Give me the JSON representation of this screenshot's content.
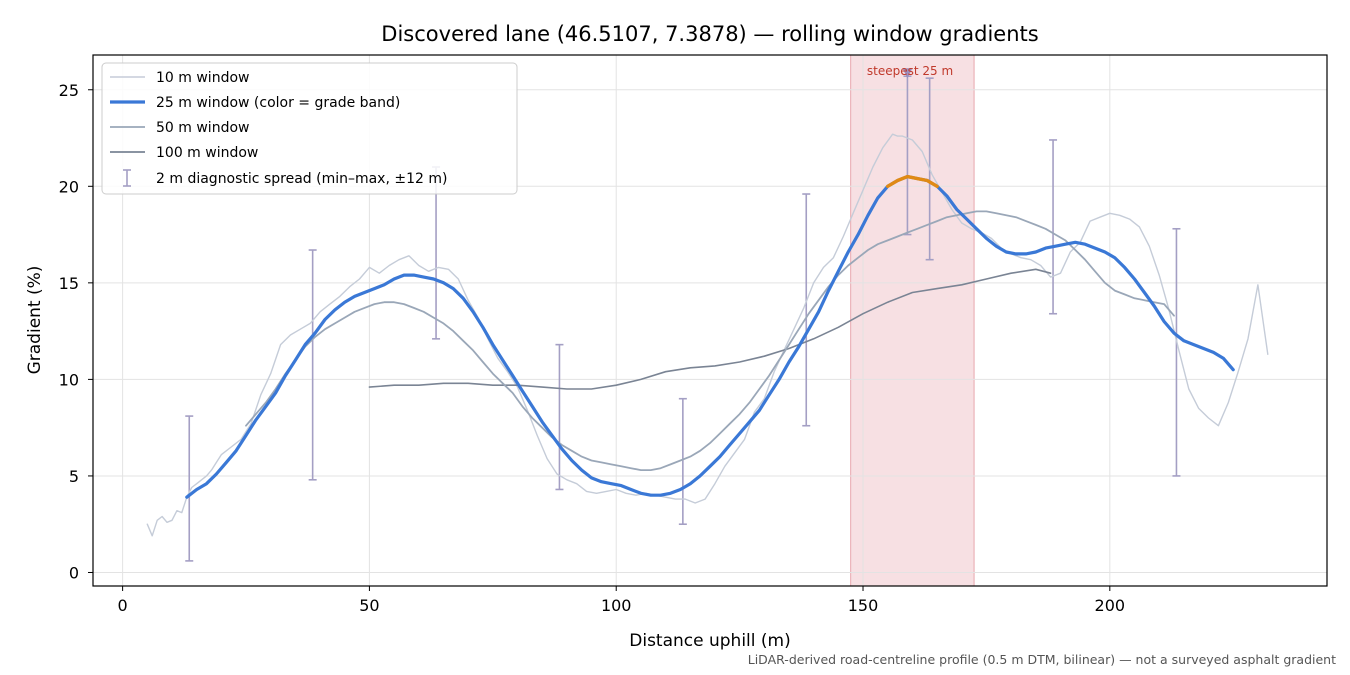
{
  "chart_data": {
    "type": "line",
    "title": "Discovered lane (46.5107, 7.3878) — rolling window gradients",
    "xlabel": "Distance uphill (m)",
    "ylabel": "Gradient (%)",
    "xlim": [
      -6,
      244
    ],
    "ylim": [
      -0.7,
      26.8
    ],
    "x_ticks": [
      0,
      50,
      100,
      150,
      200
    ],
    "y_ticks": [
      0,
      5,
      10,
      15,
      20,
      25
    ],
    "grid": true,
    "legend_position": "top-left",
    "footnote": "LiDAR-derived road-centreline profile (0.5 m DTM, bilinear) — not a surveyed asphalt gradient",
    "highlight": {
      "label": "steepest 25 m",
      "x_start": 147.5,
      "x_end": 172.5,
      "marker_x": 159,
      "marker_y": 25.8
    },
    "colors": {
      "w10": "#c5ccd8",
      "w25": "#3a78d6",
      "w25_steep": "#e08a14",
      "w50": "#9aa7b8",
      "w100": "#7a8494",
      "errorbar": "#a49fc4",
      "band": "#f4d6d9",
      "band_edge": "#e8a7ae",
      "marker": "#9b8fc0"
    },
    "series": [
      {
        "name": "10 m window",
        "key": "w10",
        "x": [
          5,
          6,
          7,
          8,
          9,
          10,
          11,
          12,
          13,
          14,
          15,
          16,
          17,
          18,
          19,
          20,
          22,
          24,
          26,
          28,
          30,
          32,
          34,
          36,
          38,
          40,
          42,
          44,
          46,
          48,
          50,
          52,
          54,
          56,
          58,
          60,
          62,
          64,
          66,
          68,
          70,
          72,
          74,
          76,
          78,
          80,
          82,
          84,
          86,
          88,
          90,
          92,
          94,
          96,
          98,
          100,
          102,
          104,
          106,
          108,
          110,
          112,
          114,
          116,
          118,
          120,
          122,
          124,
          126,
          128,
          130,
          132,
          134,
          136,
          138,
          140,
          142,
          144,
          146,
          148,
          150,
          152,
          154,
          156,
          157,
          158,
          160,
          162,
          164,
          166,
          168,
          170,
          172,
          174,
          176,
          178,
          180,
          182,
          184,
          186,
          188,
          190,
          192,
          194,
          196,
          198,
          200,
          202,
          204,
          206,
          208,
          210,
          212,
          214,
          216,
          218,
          220,
          222,
          224,
          226,
          228,
          230,
          232
        ],
        "values": [
          2.5,
          1.9,
          2.7,
          2.9,
          2.6,
          2.7,
          3.2,
          3.1,
          3.9,
          4.4,
          4.6,
          4.8,
          5.0,
          5.3,
          5.7,
          6.1,
          6.5,
          6.9,
          7.7,
          9.2,
          10.3,
          11.8,
          12.3,
          12.6,
          12.9,
          13.5,
          13.9,
          14.3,
          14.8,
          15.2,
          15.8,
          15.5,
          15.9,
          16.2,
          16.4,
          15.9,
          15.6,
          15.8,
          15.7,
          15.2,
          14.1,
          13.2,
          12.1,
          11.1,
          10.4,
          9.6,
          8.4,
          7.1,
          5.9,
          5.1,
          4.8,
          4.6,
          4.2,
          4.1,
          4.2,
          4.3,
          4.1,
          4.0,
          4.1,
          4.0,
          3.9,
          3.8,
          3.8,
          3.6,
          3.8,
          4.6,
          5.5,
          6.2,
          6.9,
          8.3,
          9.0,
          10.4,
          11.5,
          12.6,
          13.7,
          15.0,
          15.8,
          16.3,
          17.4,
          18.6,
          19.8,
          21.0,
          22.0,
          22.7,
          22.6,
          22.6,
          22.4,
          21.8,
          20.6,
          19.7,
          18.8,
          18.1,
          17.8,
          17.6,
          17.3,
          16.8,
          16.5,
          16.3,
          16.2,
          15.9,
          15.3,
          15.5,
          16.6,
          17.1,
          18.2,
          18.4,
          18.6,
          18.5,
          18.3,
          17.9,
          16.9,
          15.4,
          13.6,
          11.5,
          9.5,
          8.5,
          8.0,
          7.6,
          8.8,
          10.4,
          12.1,
          14.9,
          11.3
        ]
      },
      {
        "name": "25 m window (color = grade band)",
        "key": "w25",
        "x": [
          13,
          15,
          17,
          19,
          21,
          23,
          25,
          27,
          29,
          31,
          33,
          35,
          37,
          39,
          41,
          43,
          45,
          47,
          49,
          51,
          53,
          55,
          57,
          59,
          61,
          63,
          65,
          67,
          69,
          71,
          73,
          75,
          77,
          79,
          81,
          83,
          85,
          87,
          89,
          91,
          93,
          95,
          97,
          99,
          101,
          103,
          105,
          107,
          109,
          111,
          113,
          115,
          117,
          119,
          121,
          123,
          125,
          127,
          129,
          131,
          133,
          135,
          137,
          139,
          141,
          143,
          145,
          147,
          149,
          151,
          153,
          155,
          157,
          159,
          161,
          163,
          165,
          167,
          169,
          171,
          173,
          175,
          177,
          179,
          181,
          183,
          185,
          187,
          189,
          191,
          193,
          195,
          197,
          199,
          201,
          203,
          205,
          207,
          209,
          211,
          213,
          215,
          217,
          219,
          221,
          223,
          225
        ],
        "values": [
          3.9,
          4.3,
          4.6,
          5.1,
          5.7,
          6.3,
          7.1,
          7.9,
          8.6,
          9.3,
          10.2,
          11.0,
          11.8,
          12.4,
          13.1,
          13.6,
          14.0,
          14.3,
          14.5,
          14.7,
          14.9,
          15.2,
          15.4,
          15.4,
          15.3,
          15.2,
          15.0,
          14.7,
          14.2,
          13.5,
          12.7,
          11.8,
          11.0,
          10.2,
          9.4,
          8.6,
          7.8,
          7.1,
          6.4,
          5.8,
          5.3,
          4.9,
          4.7,
          4.6,
          4.5,
          4.3,
          4.1,
          4.0,
          4.0,
          4.1,
          4.3,
          4.6,
          5.0,
          5.5,
          6.0,
          6.6,
          7.2,
          7.8,
          8.4,
          9.2,
          10.0,
          10.9,
          11.7,
          12.6,
          13.5,
          14.6,
          15.6,
          16.6,
          17.5,
          18.5,
          19.4,
          20.0,
          20.3,
          20.5,
          20.4,
          20.3,
          20.0,
          19.5,
          18.8,
          18.3,
          17.8,
          17.3,
          16.9,
          16.6,
          16.5,
          16.5,
          16.6,
          16.8,
          16.9,
          17.0,
          17.1,
          17.0,
          16.8,
          16.6,
          16.3,
          15.8,
          15.2,
          14.5,
          13.8,
          13.0,
          12.4,
          12.0,
          11.8,
          11.6,
          11.4,
          11.1,
          10.5
        ]
      },
      {
        "name": "50 m window",
        "key": "w50",
        "x": [
          25,
          27,
          29,
          31,
          33,
          35,
          37,
          39,
          41,
          43,
          45,
          47,
          49,
          51,
          53,
          55,
          57,
          59,
          61,
          63,
          65,
          67,
          69,
          71,
          73,
          75,
          77,
          79,
          81,
          83,
          85,
          87,
          89,
          91,
          93,
          95,
          97,
          99,
          101,
          103,
          105,
          107,
          109,
          111,
          113,
          115,
          117,
          119,
          121,
          123,
          125,
          127,
          129,
          131,
          133,
          135,
          137,
          139,
          141,
          143,
          145,
          147,
          149,
          151,
          153,
          155,
          157,
          159,
          161,
          163,
          165,
          167,
          169,
          171,
          173,
          175,
          177,
          179,
          181,
          183,
          185,
          187,
          189,
          191,
          193,
          195,
          197,
          199,
          201,
          203,
          205,
          207,
          209,
          211,
          213
        ],
        "values": [
          7.6,
          8.2,
          8.8,
          9.5,
          10.3,
          11.0,
          11.7,
          12.2,
          12.6,
          12.9,
          13.2,
          13.5,
          13.7,
          13.9,
          14.0,
          14.0,
          13.9,
          13.7,
          13.5,
          13.2,
          12.9,
          12.5,
          12.0,
          11.5,
          10.9,
          10.3,
          9.8,
          9.3,
          8.6,
          8.0,
          7.5,
          7.0,
          6.6,
          6.3,
          6.0,
          5.8,
          5.7,
          5.6,
          5.5,
          5.4,
          5.3,
          5.3,
          5.4,
          5.6,
          5.8,
          6.0,
          6.3,
          6.7,
          7.2,
          7.7,
          8.2,
          8.8,
          9.5,
          10.2,
          11.0,
          11.8,
          12.6,
          13.4,
          14.1,
          14.8,
          15.4,
          15.9,
          16.3,
          16.7,
          17.0,
          17.2,
          17.4,
          17.6,
          17.8,
          18.0,
          18.2,
          18.4,
          18.5,
          18.6,
          18.7,
          18.7,
          18.6,
          18.5,
          18.4,
          18.2,
          18.0,
          17.8,
          17.5,
          17.2,
          16.7,
          16.2,
          15.6,
          15.0,
          14.6,
          14.4,
          14.2,
          14.1,
          14.0,
          13.9,
          13.3
        ]
      },
      {
        "name": "100 m window",
        "key": "w100",
        "x": [
          50,
          55,
          60,
          65,
          70,
          75,
          80,
          85,
          90,
          95,
          100,
          105,
          110,
          115,
          120,
          125,
          130,
          135,
          140,
          145,
          150,
          155,
          160,
          165,
          170,
          175,
          180,
          185,
          188
        ],
        "values": [
          9.6,
          9.7,
          9.7,
          9.8,
          9.8,
          9.7,
          9.7,
          9.6,
          9.5,
          9.5,
          9.7,
          10.0,
          10.4,
          10.6,
          10.7,
          10.9,
          11.2,
          11.6,
          12.1,
          12.7,
          13.4,
          14.0,
          14.5,
          14.7,
          14.9,
          15.2,
          15.5,
          15.7,
          15.5
        ]
      }
    ],
    "errorbars": {
      "name": "2 m diagnostic spread (min–max, ±12 m)",
      "x": [
        13.5,
        38.5,
        63.5,
        88.5,
        113.5,
        138.5,
        159,
        163.5,
        188.5,
        213.5
      ],
      "low": [
        0.6,
        4.8,
        12.1,
        4.3,
        2.5,
        7.6,
        17.5,
        16.2,
        13.4,
        5.0
      ],
      "high": [
        8.1,
        16.7,
        21.0,
        11.8,
        9.0,
        19.6,
        25.7,
        25.6,
        22.4,
        17.8
      ]
    }
  }
}
